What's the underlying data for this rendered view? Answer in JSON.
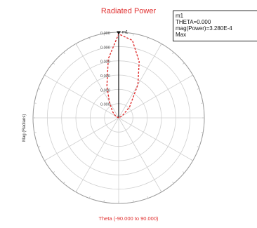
{
  "chart_data": {
    "type": "polar",
    "title": "Radiated Power",
    "xlabel": "Theta (-90.000 to 90.000)",
    "ylabel": "Mag (Radians)",
    "r_ticks": [
      "0.000",
      "0.000",
      "0.000",
      "0.000",
      "0.000",
      "0.000"
    ],
    "angle_tick_step_deg": 30,
    "series": [
      {
        "color": "#e03030",
        "line_style": "dashed",
        "points": [
          {
            "theta": -90,
            "r": 0.0
          },
          {
            "theta": -60,
            "r": 0.04
          },
          {
            "theta": -45,
            "r": 0.1
          },
          {
            "theta": -30,
            "r": 0.22
          },
          {
            "theta": -20,
            "r": 0.4
          },
          {
            "theta": -10,
            "r": 0.7
          },
          {
            "theta": 0,
            "r": 0.98
          },
          {
            "theta": 10,
            "r": 0.92
          },
          {
            "theta": 20,
            "r": 0.7
          },
          {
            "theta": 30,
            "r": 0.45
          },
          {
            "theta": 45,
            "r": 0.18
          },
          {
            "theta": 60,
            "r": 0.05
          },
          {
            "theta": 90,
            "r": 0.0
          }
        ]
      }
    ],
    "marker": {
      "label": "m1",
      "lines": [
        "m1",
        "THETA=0.000",
        "mag(Power)=3.280E-4",
        "Max"
      ]
    }
  },
  "colors": {
    "title": "#e03030",
    "grid": "#cfcfcf",
    "axis": "#111111"
  }
}
